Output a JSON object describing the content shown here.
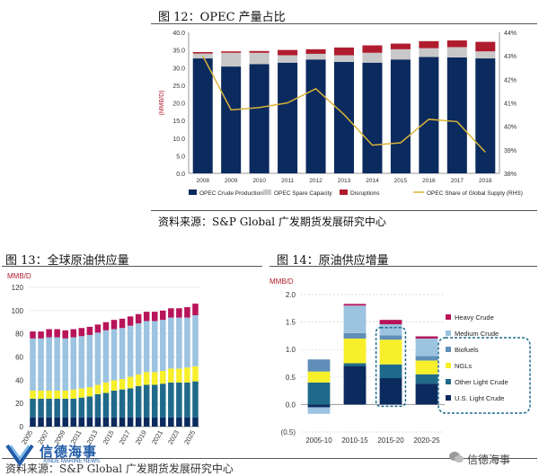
{
  "fig12": {
    "title": "图 12：OPEC 产量占比",
    "source": "资料来源：S&P Global  广发期货发展研究中心"
  },
  "fig13": {
    "title": "图 13：全球原油供应量",
    "source": "资料来源：S&P Global  广发期货发展研究中心"
  },
  "fig14": {
    "title": "图 14：原油供应增量"
  },
  "watermark": {
    "logo_text": "信德海事",
    "logo_sub": "XINDE MARINE NEWS",
    "wechat_text": "信德海事"
  },
  "colors": {
    "navy": "#0b2a5e",
    "grey": "#c8c8c8",
    "darkred": "#b01c2e",
    "gold": "#d9b43a",
    "teal": "#1f6a8a",
    "lightblue": "#9cc3e0",
    "yellow": "#f7ef2a",
    "crimson": "#b8145a",
    "steel": "#5f8fb8"
  },
  "chart_data": [
    {
      "id": "fig12",
      "type": "bar",
      "stacked": true,
      "categories": [
        "2008",
        "2009",
        "2010",
        "2011",
        "2012",
        "2013",
        "2014",
        "2015",
        "2016",
        "2017",
        "2018"
      ],
      "series": [
        {
          "name": "OPEC Crude Production",
          "values": [
            32.6,
            30.3,
            31.0,
            31.4,
            32.3,
            31.6,
            31.4,
            32.3,
            33.0,
            32.9,
            32.6
          ]
        },
        {
          "name": "OPEC Spare Capacity",
          "values": [
            1.4,
            3.9,
            3.2,
            2.1,
            1.6,
            1.9,
            2.8,
            2.9,
            2.5,
            2.9,
            2.0
          ]
        },
        {
          "name": "Disruptions",
          "values": [
            0.4,
            0.4,
            0.5,
            1.5,
            1.3,
            2.2,
            2.1,
            1.6,
            2.0,
            1.9,
            2.7
          ]
        },
        {
          "name": "OPEC Share of Global Supply (RHS)",
          "axis": "right",
          "values": [
            43.0,
            40.7,
            40.8,
            41.0,
            41.6,
            40.5,
            39.2,
            39.3,
            40.3,
            40.2,
            38.9
          ]
        }
      ],
      "ylabel": "(MMB/D)",
      "ylim": [
        0,
        40
      ],
      "yticks": [
        "0.0",
        "5.0",
        "10.0",
        "15.0",
        "20.0",
        "25.0",
        "30.0",
        "35.0",
        "40.0"
      ],
      "y2lim": [
        38,
        44
      ],
      "y2ticks": [
        "38%",
        "39%",
        "40%",
        "41%",
        "42%",
        "43%",
        "44%"
      ],
      "legend": "bottom",
      "grid": false
    },
    {
      "id": "fig13",
      "type": "bar",
      "stacked": true,
      "categories": [
        "2005",
        "2006",
        "2007",
        "2008",
        "2009",
        "2010",
        "2011",
        "2012",
        "2013",
        "2014",
        "2015",
        "2016",
        "2017",
        "2018",
        "2019",
        "2020",
        "2021",
        "2022",
        "2023",
        "2024",
        "2025"
      ],
      "tick_labels": [
        "2005",
        "2007",
        "2009",
        "2011",
        "2013",
        "2015",
        "2017",
        "2019",
        "2021",
        "2023",
        "2025"
      ],
      "series": [
        {
          "name": "navy",
          "values": [
            8,
            8,
            8,
            8,
            8,
            8,
            8,
            8,
            8,
            8,
            8,
            8,
            8,
            8,
            8,
            8,
            8,
            8,
            8,
            8,
            8
          ]
        },
        {
          "name": "teal",
          "values": [
            16,
            16,
            16,
            16,
            16,
            16,
            17,
            18,
            20,
            21,
            23,
            24,
            25,
            27,
            28,
            28,
            29,
            30,
            30,
            30,
            31
          ]
        },
        {
          "name": "yellow",
          "values": [
            7,
            7,
            7,
            7,
            7,
            8,
            8,
            8,
            8,
            9,
            9,
            9,
            10,
            10,
            11,
            11,
            11,
            12,
            12,
            13,
            13
          ]
        },
        {
          "name": "lightblue",
          "values": [
            45,
            45,
            46,
            46,
            45,
            45,
            45,
            45,
            45,
            45,
            44,
            44,
            44,
            44,
            44,
            44,
            44,
            44,
            44,
            43,
            44
          ]
        },
        {
          "name": "crimson",
          "values": [
            6,
            6,
            7,
            7,
            7,
            7,
            7,
            7,
            7,
            7,
            8,
            8,
            8,
            8,
            8,
            8,
            8,
            8,
            8,
            9,
            10
          ]
        }
      ],
      "ylabel": "MMB/D",
      "ylim": [
        0,
        120
      ],
      "yticks": [
        "0",
        "20",
        "40",
        "60",
        "80",
        "100",
        "120"
      ],
      "legend": "none"
    },
    {
      "id": "fig14",
      "type": "bar",
      "stacked": true,
      "categories": [
        "2005-10",
        "2010-15",
        "2015-20",
        "2020-25"
      ],
      "series": [
        {
          "name": "Heavy Crude",
          "values": [
            0,
            0.03,
            0.08,
            0.04
          ]
        },
        {
          "name": "Medium Crude",
          "values": [
            -0.12,
            0.5,
            0.2,
            0.32
          ]
        },
        {
          "name": "Biofuels",
          "values": [
            0.22,
            0.1,
            0.08,
            0.08
          ]
        },
        {
          "name": "NGLs",
          "values": [
            0.2,
            0.45,
            0.45,
            0.25
          ]
        },
        {
          "name": "Other Light Crude",
          "values": [
            0.4,
            0.05,
            0.25,
            0.17
          ]
        },
        {
          "name": "U.S. Light Crude",
          "values": [
            -0.05,
            0.7,
            0.48,
            0.38
          ]
        }
      ],
      "ylabel": "MMB/D",
      "ylim": [
        -0.5,
        2.0
      ],
      "yticks": [
        "(0.5)",
        "0.0",
        "0.5",
        "1.0",
        "1.5",
        "2.0"
      ],
      "legend": "right",
      "grid": true
    }
  ]
}
